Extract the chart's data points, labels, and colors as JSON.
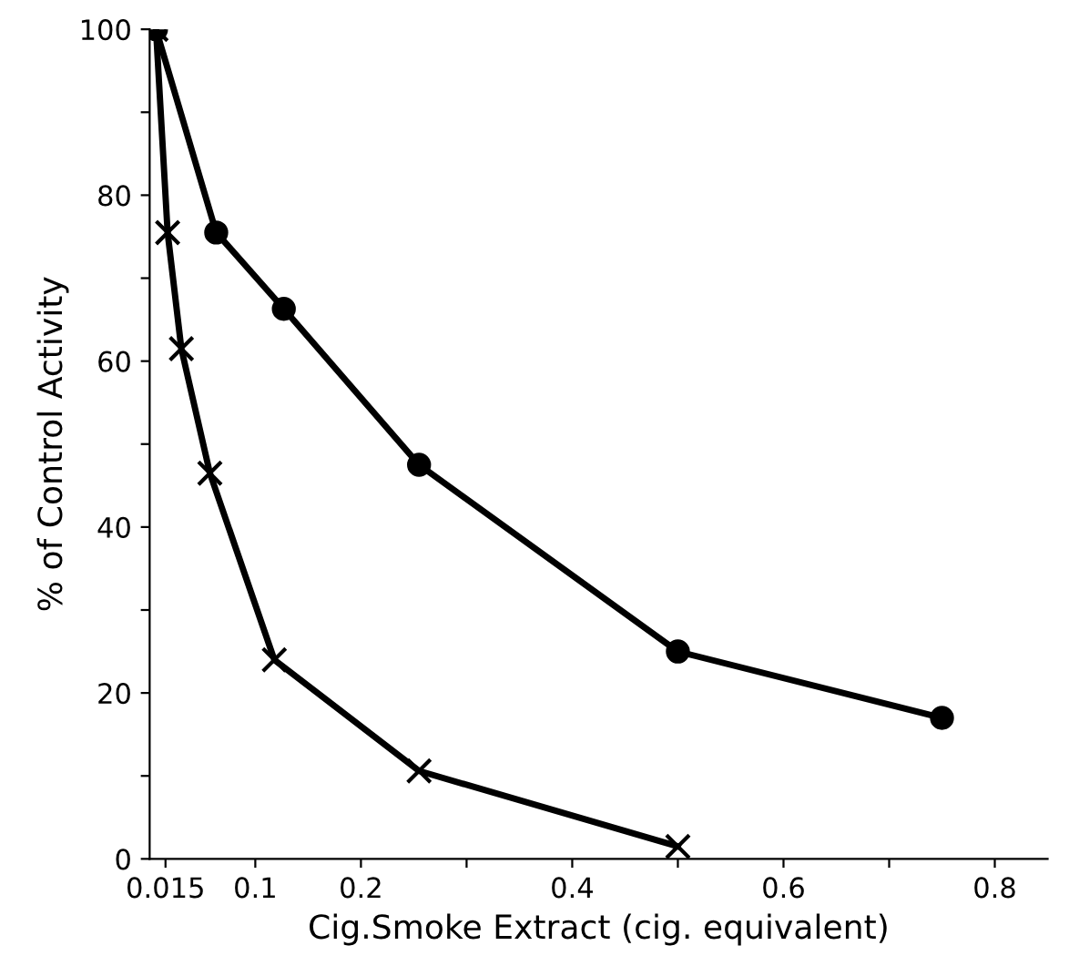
{
  "chart_data": {
    "type": "line",
    "xlabel": "Cig.Smoke Extract (cig. equivalent)",
    "ylabel": "% of Control Activity",
    "xlim": [
      0,
      0.85
    ],
    "ylim": [
      0,
      100
    ],
    "xticks": [
      0.015,
      0.1,
      0.2,
      {
        "value": 0.3,
        "label": null
      },
      0.4,
      {
        "value": 0.5,
        "label": null
      },
      0.6,
      {
        "value": 0.7,
        "label": null
      },
      0.8
    ],
    "yticks": [
      0,
      {
        "value": 10,
        "label": null
      },
      20,
      {
        "value": 30,
        "label": null
      },
      40,
      {
        "value": 50,
        "label": null
      },
      60,
      {
        "value": 70,
        "label": null
      },
      80,
      {
        "value": 90,
        "label": null
      },
      100
    ],
    "grid": false,
    "legend": false,
    "line_style": "solid",
    "series": [
      {
        "color": "#000000",
        "marker": "circle",
        "x": [
          0.006,
          0.063,
          0.127,
          0.255,
          0.5,
          0.75
        ],
        "values": [
          100,
          75.5,
          66.3,
          47.5,
          25,
          17
        ]
      },
      {
        "color": "#000000",
        "marker": "cross",
        "x": [
          0.006,
          0.017,
          0.03,
          0.057,
          0.118,
          0.255,
          0.5
        ],
        "values": [
          100,
          75.5,
          61.5,
          46.5,
          24,
          10.6,
          1.5
        ]
      }
    ]
  }
}
